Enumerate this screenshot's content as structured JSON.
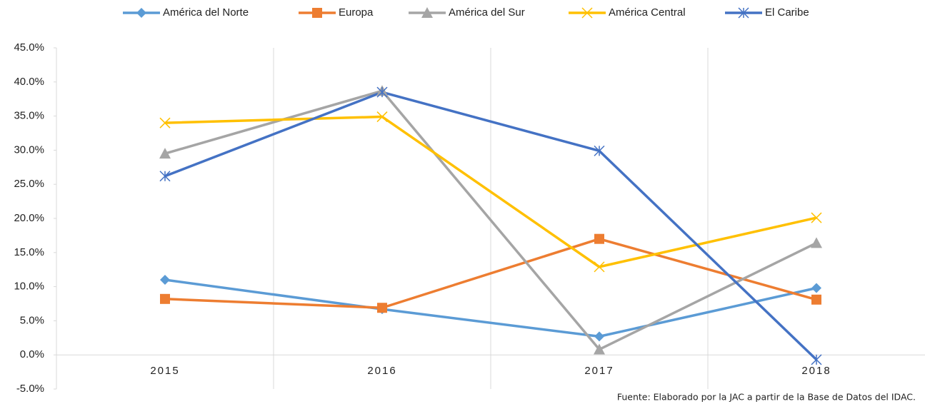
{
  "chart_data": {
    "type": "line",
    "categories": [
      "2015",
      "2016",
      "2017",
      "2018"
    ],
    "series": [
      {
        "name": "América del Norte",
        "color": "#5b9bd5",
        "marker": "diamond",
        "values": [
          11.0,
          6.7,
          2.7,
          9.8
        ]
      },
      {
        "name": "Europa",
        "color": "#ed7d31",
        "marker": "square",
        "values": [
          8.2,
          6.9,
          17.0,
          8.1
        ]
      },
      {
        "name": "América del Sur",
        "color": "#a5a5a5",
        "marker": "triangle",
        "values": [
          29.5,
          38.7,
          0.8,
          16.4
        ]
      },
      {
        "name": "América Central",
        "color": "#ffc000",
        "marker": "x",
        "values": [
          34.0,
          34.9,
          12.9,
          20.1
        ]
      },
      {
        "name": "El Caribe",
        "color": "#4472c4",
        "marker": "star",
        "values": [
          26.2,
          38.5,
          29.9,
          -0.7
        ]
      }
    ],
    "ylim": [
      -5,
      45
    ],
    "yticks": [
      {
        "value": -5,
        "label": "-5.0%"
      },
      {
        "value": 0,
        "label": "0.0%"
      },
      {
        "value": 5,
        "label": "5.0%"
      },
      {
        "value": 10,
        "label": "10.0%"
      },
      {
        "value": 15,
        "label": "15.0%"
      },
      {
        "value": 20,
        "label": "20.0%"
      },
      {
        "value": 25,
        "label": "25.0%"
      },
      {
        "value": 30,
        "label": "30.0%"
      },
      {
        "value": 35,
        "label": "35.0%"
      },
      {
        "value": 40,
        "label": "40.0%"
      },
      {
        "value": 45,
        "label": "45.0%"
      }
    ],
    "legend": "top",
    "source": "Fuente: Elaborado por la JAC a partir de la Base de Datos del IDAC."
  }
}
